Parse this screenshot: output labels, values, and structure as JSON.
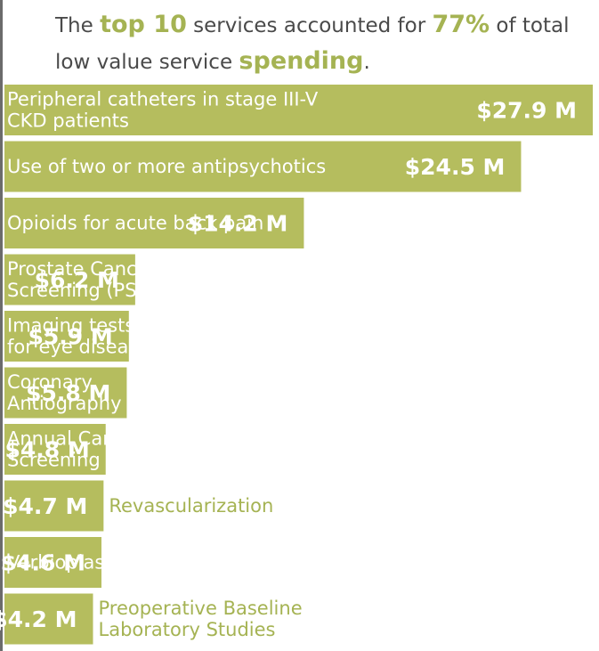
{
  "headline": {
    "part1": "The ",
    "hl1": "top 10",
    "part2": " services accounted for ",
    "hl2": "77%",
    "part3": " of total low value service ",
    "hl3": "spending",
    "part4": "."
  },
  "colors": {
    "bar": "#b5bd5e",
    "label_outside": "#a5b353",
    "headline_text": "#4a4a4a"
  },
  "chart_data": {
    "type": "bar",
    "orientation": "horizontal",
    "unit": "$M",
    "categories": [
      "Peripheral catheters in stage III-V CKD patients",
      "Use of two or more antipsychotics",
      "Opioids for acute back pain",
      "Prostate Cancer Screening (PSA)",
      "Imaging tests for eye disease",
      "Coronary Antiography",
      "Annual Cardiac Screening",
      "Revascularization",
      "Verbioplasty",
      "Preoperative Baseline Laboratory Studies"
    ],
    "label_lines": [
      [
        "Peripheral catheters in stage III-V",
        "CKD patients"
      ],
      [
        "Use of two or more antipsychotics"
      ],
      [
        "Opioids for acute back pain"
      ],
      [
        "Prostate Cancer",
        "Screening (PSA)"
      ],
      [
        "Imaging tests",
        "for eye disease"
      ],
      [
        "Coronary",
        "Antiography"
      ],
      [
        "Annual Cardiac",
        "Screening"
      ],
      [
        "Revascularization"
      ],
      [
        "Verbioplasty"
      ],
      [
        "Preoperative Baseline",
        "Laboratory Studies"
      ]
    ],
    "label_inside": [
      true,
      true,
      true,
      true,
      true,
      true,
      true,
      false,
      true,
      false
    ],
    "values": [
      27.9,
      24.5,
      14.2,
      6.2,
      5.9,
      5.8,
      4.8,
      4.7,
      4.6,
      4.2
    ],
    "value_labels": [
      "$27.9 M",
      "$24.5 M",
      "$14.2 M",
      "$6.2 M",
      "$5.9 M",
      "$5.8 M",
      "$4.8 M",
      "$4.7 M",
      "$4.6 M",
      "$4.2 M"
    ]
  }
}
